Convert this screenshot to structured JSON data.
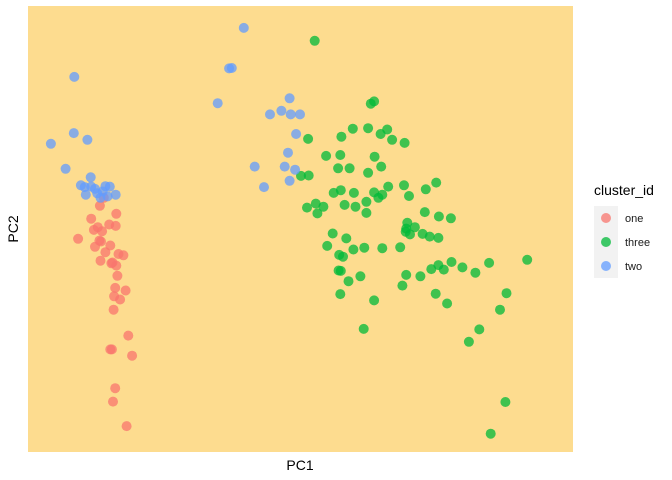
{
  "chart_data": {
    "type": "scatter",
    "xlabel": "PC1",
    "ylabel": "PC2",
    "xlim": [
      0,
      100
    ],
    "ylim": [
      0,
      100
    ],
    "grid": false,
    "panel_background": "#FDDC8F",
    "legend": {
      "title": "cluster_id",
      "placement": "right",
      "entries": [
        "one",
        "three",
        "two"
      ]
    },
    "series": [
      {
        "name": "one",
        "color": "#F8766D",
        "points": [
          [
            9.2,
            47.8
          ],
          [
            13.2,
            55.2
          ],
          [
            12.1,
            49.8
          ],
          [
            16.2,
            53.4
          ],
          [
            16.1,
            50.7
          ],
          [
            11.6,
            52.3
          ],
          [
            12.8,
            50.4
          ],
          [
            13.6,
            49.5
          ],
          [
            14.9,
            51.0
          ],
          [
            13.1,
            47.4
          ],
          [
            13.4,
            47.2
          ],
          [
            14.2,
            44.8
          ],
          [
            15.1,
            46.3
          ],
          [
            12.3,
            46.0
          ],
          [
            15.5,
            42.5
          ],
          [
            15.3,
            42.3
          ],
          [
            13.3,
            42.9
          ],
          [
            16.6,
            44.4
          ],
          [
            17.5,
            44.1
          ],
          [
            16.2,
            41.8
          ],
          [
            16.4,
            39.5
          ],
          [
            16.0,
            36.8
          ],
          [
            15.8,
            34.9
          ],
          [
            16.9,
            34.2
          ],
          [
            17.9,
            36.2
          ],
          [
            15.7,
            31.9
          ],
          [
            18.4,
            26.1
          ],
          [
            15.1,
            23.0
          ],
          [
            15.4,
            23.0
          ],
          [
            19.1,
            21.6
          ],
          [
            16.0,
            14.3
          ],
          [
            15.6,
            11.3
          ],
          [
            18.1,
            5.8
          ],
          [
            13.9,
            57.0
          ]
        ]
      },
      {
        "name": "three",
        "color": "#00BA38",
        "points": [
          [
            52.6,
            92.2
          ],
          [
            62.9,
            78.1
          ],
          [
            63.5,
            78.6
          ],
          [
            59.6,
            72.5
          ],
          [
            62.4,
            72.6
          ],
          [
            65.9,
            72.3
          ],
          [
            64.7,
            71.3
          ],
          [
            66.8,
            70.0
          ],
          [
            57.5,
            70.7
          ],
          [
            51.4,
            70.2
          ],
          [
            69.1,
            69.3
          ],
          [
            57.3,
            66.6
          ],
          [
            63.6,
            66.2
          ],
          [
            54.7,
            66.4
          ],
          [
            64.8,
            64.0
          ],
          [
            59.0,
            63.6
          ],
          [
            56.9,
            63.6
          ],
          [
            62.4,
            62.6
          ],
          [
            51.5,
            62.0
          ],
          [
            50.1,
            61.9
          ],
          [
            74.9,
            60.4
          ],
          [
            69.0,
            59.8
          ],
          [
            66.1,
            59.5
          ],
          [
            73.0,
            58.9
          ],
          [
            57.4,
            58.7
          ],
          [
            59.8,
            58.1
          ],
          [
            63.5,
            58.2
          ],
          [
            56.1,
            58.1
          ],
          [
            65.0,
            57.7
          ],
          [
            64.3,
            57.0
          ],
          [
            69.9,
            57.4
          ],
          [
            62.1,
            56.1
          ],
          [
            52.8,
            55.7
          ],
          [
            60.1,
            55.0
          ],
          [
            58.1,
            55.4
          ],
          [
            54.2,
            55.0
          ],
          [
            51.2,
            54.8
          ],
          [
            62.1,
            53.6
          ],
          [
            53.1,
            53.5
          ],
          [
            72.8,
            53.8
          ],
          [
            75.4,
            52.8
          ],
          [
            77.6,
            52.4
          ],
          [
            69.6,
            51.4
          ],
          [
            69.4,
            50.1
          ],
          [
            71.0,
            50.4
          ],
          [
            69.3,
            49.4
          ],
          [
            70.1,
            48.8
          ],
          [
            72.4,
            48.9
          ],
          [
            73.7,
            48.3
          ],
          [
            75.3,
            48.0
          ],
          [
            55.9,
            49.0
          ],
          [
            58.4,
            47.9
          ],
          [
            54.9,
            46.2
          ],
          [
            61.7,
            45.8
          ],
          [
            65.0,
            45.7
          ],
          [
            68.3,
            45.9
          ],
          [
            57.1,
            44.2
          ],
          [
            57.8,
            43.8
          ],
          [
            59.7,
            45.4
          ],
          [
            91.6,
            43.1
          ],
          [
            84.6,
            42.4
          ],
          [
            77.7,
            42.6
          ],
          [
            75.3,
            41.9
          ],
          [
            79.7,
            41.4
          ],
          [
            76.3,
            40.9
          ],
          [
            74.0,
            41.0
          ],
          [
            82.1,
            40.2
          ],
          [
            72.0,
            39.4
          ],
          [
            69.4,
            39.7
          ],
          [
            57.0,
            40.7
          ],
          [
            57.4,
            40.6
          ],
          [
            58.8,
            38.3
          ],
          [
            61.0,
            39.4
          ],
          [
            68.7,
            37.3
          ],
          [
            74.8,
            35.5
          ],
          [
            87.8,
            35.6
          ],
          [
            57.3,
            35.4
          ],
          [
            63.5,
            34.0
          ],
          [
            76.9,
            33.3
          ],
          [
            86.6,
            31.9
          ],
          [
            82.8,
            27.5
          ],
          [
            61.6,
            27.6
          ],
          [
            80.9,
            24.7
          ],
          [
            87.6,
            11.2
          ],
          [
            84.9,
            4.1
          ]
        ]
      },
      {
        "name": "two",
        "color": "#619CFF",
        "points": [
          [
            39.6,
            95.1
          ],
          [
            37.4,
            86.1
          ],
          [
            36.9,
            86.0
          ],
          [
            8.5,
            84.1
          ],
          [
            48.0,
            79.3
          ],
          [
            34.8,
            78.2
          ],
          [
            49.9,
            75.7
          ],
          [
            44.4,
            75.7
          ],
          [
            46.5,
            76.5
          ],
          [
            48.2,
            75.7
          ],
          [
            8.4,
            71.5
          ],
          [
            49.2,
            71.3
          ],
          [
            4.2,
            69.1
          ],
          [
            10.9,
            70.0
          ],
          [
            47.7,
            67.1
          ],
          [
            6.9,
            63.5
          ],
          [
            11.5,
            61.6
          ],
          [
            41.6,
            64.0
          ],
          [
            49.0,
            63.3
          ],
          [
            47.1,
            64.0
          ],
          [
            9.7,
            59.8
          ],
          [
            14.2,
            59.6
          ],
          [
            10.4,
            59.4
          ],
          [
            11.6,
            59.5
          ],
          [
            15.0,
            59.5
          ],
          [
            12.3,
            59.0
          ],
          [
            48.0,
            60.8
          ],
          [
            13.7,
            58.4
          ],
          [
            12.7,
            58.0
          ],
          [
            16.1,
            57.7
          ],
          [
            10.6,
            57.7
          ],
          [
            13.3,
            57.0
          ],
          [
            43.3,
            59.4
          ],
          [
            14.6,
            57.3
          ]
        ]
      }
    ]
  }
}
